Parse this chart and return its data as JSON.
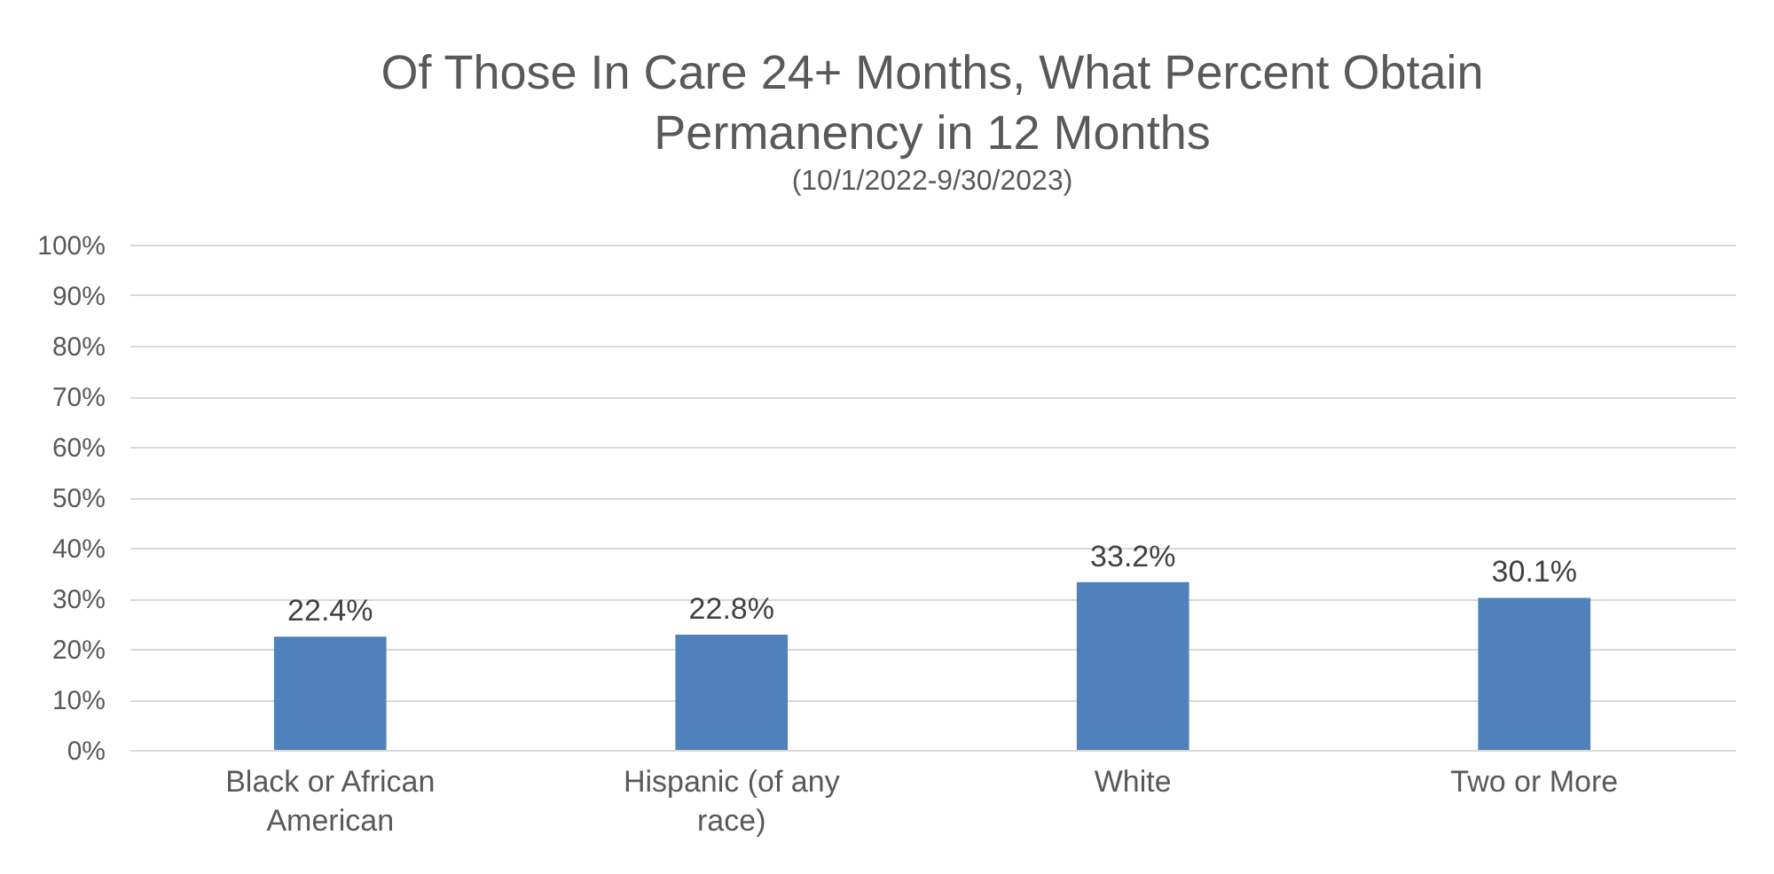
{
  "chart_data": {
    "type": "bar",
    "title": "Of Those In Care 24+ Months, What Percent Obtain Permanency in 12 Months",
    "subtitle": "(10/1/2022-9/30/2023)",
    "categories": [
      "Black or African American",
      "Hispanic (of any race)",
      "White",
      "Two or More"
    ],
    "values": [
      22.4,
      22.8,
      33.2,
      30.1
    ],
    "value_labels": [
      "22.4%",
      "22.8%",
      "33.2%",
      "30.1%"
    ],
    "color": "#4f81bd",
    "ylim": [
      0,
      100
    ],
    "yticks": [
      {
        "value": 0,
        "label": "0%"
      },
      {
        "value": 10,
        "label": "10%"
      },
      {
        "value": 20,
        "label": "20%"
      },
      {
        "value": 30,
        "label": "30%"
      },
      {
        "value": 40,
        "label": "40%"
      },
      {
        "value": 50,
        "label": "50%"
      },
      {
        "value": 60,
        "label": "60%"
      },
      {
        "value": 70,
        "label": "70%"
      },
      {
        "value": 80,
        "label": "80%"
      },
      {
        "value": 90,
        "label": "90%"
      },
      {
        "value": 100,
        "label": "100%"
      }
    ],
    "grid": "y"
  }
}
